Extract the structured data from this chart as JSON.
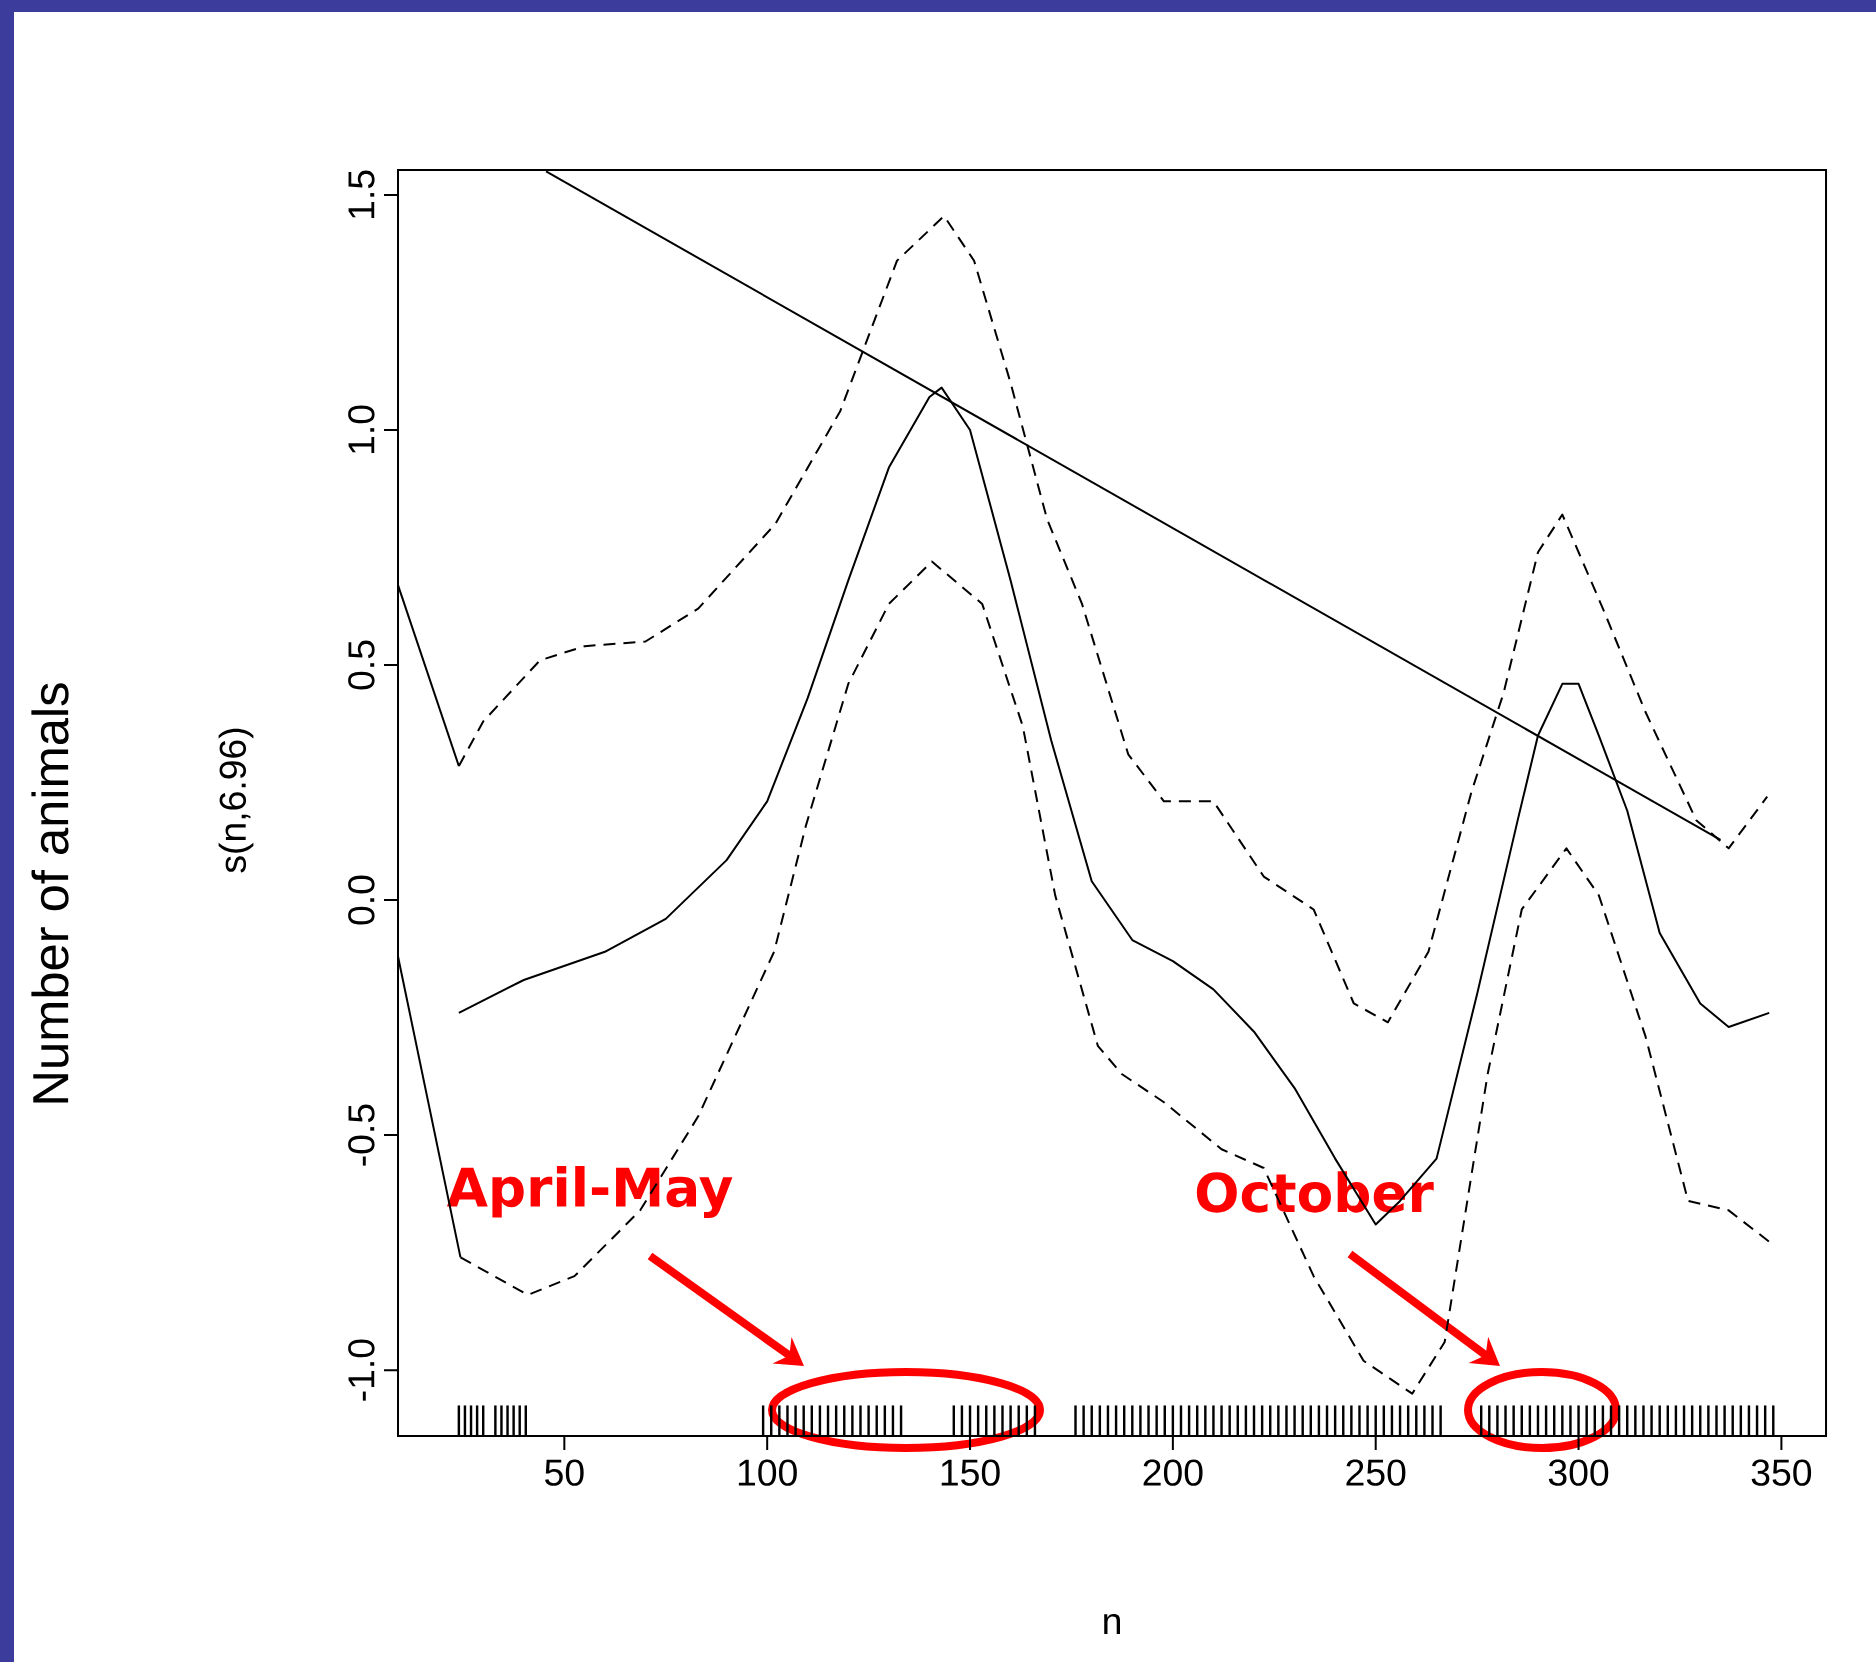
{
  "chart_data": {
    "type": "line",
    "xlabel": "n",
    "ylabel": "s(n,6.96)",
    "xlim": [
      9,
      361
    ],
    "ylim": [
      -1.14,
      1.553
    ],
    "xticks": [
      50,
      100,
      150,
      200,
      250,
      300,
      350
    ],
    "yticks": [
      {
        "value": -1,
        "label": "-1.0"
      },
      {
        "value": -0.5,
        "label": "-0.5"
      },
      {
        "value": 0,
        "label": "0.0"
      },
      {
        "value": 0.5,
        "label": "0.5"
      },
      {
        "value": 1,
        "label": "1.0"
      },
      {
        "value": 1.5,
        "label": "1.5"
      }
    ],
    "series": [
      {
        "color": "#000000",
        "line_style": "solid",
        "x": [
          24,
          40,
          60,
          75,
          90,
          100,
          110,
          120,
          130,
          140,
          143,
          150,
          160,
          170,
          180,
          190,
          200,
          210,
          220,
          230,
          240,
          250,
          256,
          265,
          275,
          285,
          290,
          296,
          300,
          305,
          312,
          320,
          330,
          337,
          347
        ],
        "values": [
          -0.24,
          -0.17,
          -0.11,
          -0.04,
          0.085,
          0.21,
          0.43,
          0.68,
          0.92,
          1.07,
          1.09,
          1.0,
          0.68,
          0.34,
          0.04,
          -0.085,
          -0.13,
          -0.19,
          -0.28,
          -0.4,
          -0.55,
          -0.69,
          -0.64,
          -0.55,
          -0.2,
          0.17,
          0.35,
          0.46,
          0.46,
          0.35,
          0.19,
          -0.07,
          -0.22,
          -0.27,
          -0.24
        ]
      },
      {
        "color": "#000000",
        "line_style": "dashed",
        "x": [
          24,
          30,
          44,
          55,
          70,
          83,
          102,
          118,
          132,
          143.6,
          151,
          160,
          169,
          177.6,
          189,
          197.8,
          210,
          222.4,
          234.7,
          244.6,
          253,
          263,
          273.6,
          281.5,
          290,
          296,
          306,
          316.5,
          329,
          337,
          346.5
        ],
        "values": [
          0.285,
          0.38,
          0.51,
          0.54,
          0.55,
          0.62,
          0.8,
          1.04,
          1.36,
          1.455,
          1.36,
          1.1,
          0.81,
          0.63,
          0.31,
          0.21,
          0.21,
          0.05,
          -0.02,
          -0.22,
          -0.26,
          -0.11,
          0.23,
          0.44,
          0.74,
          0.82,
          0.62,
          0.4,
          0.17,
          0.11,
          0.22
        ]
      },
      {
        "color": "#000000",
        "line_style": "dashed",
        "x": [
          24.4,
          41,
          52.5,
          68.7,
          83,
          101.7,
          109.6,
          120,
          130,
          140.6,
          153,
          163,
          171,
          181.5,
          187.4,
          197.8,
          212,
          222.4,
          234.7,
          247,
          259,
          267,
          277.6,
          286,
          297,
          305,
          316.5,
          327,
          337,
          347.5
        ],
        "values": [
          -0.76,
          -0.84,
          -0.8,
          -0.66,
          -0.46,
          -0.11,
          0.16,
          0.46,
          0.63,
          0.72,
          0.63,
          0.37,
          0.01,
          -0.31,
          -0.37,
          -0.43,
          -0.53,
          -0.57,
          -0.8,
          -0.98,
          -1.05,
          -0.94,
          -0.37,
          -0.02,
          0.11,
          0.01,
          -0.29,
          -0.64,
          -0.66,
          -0.73
        ]
      },
      {
        "color": "#000000",
        "line_style": "solid",
        "x": [
          45.5,
          335
        ],
        "values": [
          1.55,
          0.128
        ]
      },
      {
        "color": "#000000",
        "line_style": "solid",
        "x": [
          9,
          24
        ],
        "values": [
          0.67,
          0.285
        ]
      },
      {
        "color": "#000000",
        "line_style": "solid",
        "x": [
          9,
          24.4
        ],
        "values": [
          -0.12,
          -0.76
        ]
      },
      {
        "type": "bar",
        "color": "#000000",
        "x": [
          24,
          25.5,
          27,
          28.5,
          30,
          33,
          34.5,
          36,
          37.5,
          39,
          40.5,
          99,
          101,
          103,
          105,
          107,
          109,
          111,
          113,
          115,
          117,
          119,
          121,
          123,
          125,
          127,
          129,
          131,
          133,
          146,
          148,
          150,
          152,
          154,
          156,
          158,
          160,
          162,
          164,
          166,
          176,
          178,
          180,
          182,
          184,
          186,
          188,
          190,
          192,
          194,
          196,
          198,
          200,
          202,
          204,
          206,
          208,
          210,
          212,
          214,
          216,
          218,
          220,
          222,
          224,
          226,
          228,
          230,
          232,
          234,
          236,
          238,
          240,
          242,
          244,
          246,
          248,
          250,
          252,
          254,
          256,
          258,
          260,
          262,
          264,
          266,
          276,
          278,
          280,
          282,
          284,
          286,
          288,
          290,
          292,
          294,
          296,
          298,
          300,
          302,
          304,
          306,
          308,
          310,
          312,
          314,
          316,
          318,
          320,
          322,
          324,
          326,
          328,
          330,
          332,
          334,
          336,
          338,
          340,
          342,
          344,
          346,
          348
        ],
        "base": [
          -1.14,
          -1.14,
          -1.14,
          -1.14,
          -1.14,
          -1.14,
          -1.14,
          -1.14,
          -1.14,
          -1.14,
          -1.14,
          -1.14,
          -1.14,
          -1.14,
          -1.14,
          -1.14,
          -1.14,
          -1.14,
          -1.14,
          -1.14,
          -1.14,
          -1.14,
          -1.14,
          -1.14,
          -1.14,
          -1.14,
          -1.14,
          -1.14,
          -1.14,
          -1.14,
          -1.14,
          -1.14,
          -1.14,
          -1.14,
          -1.14,
          -1.14,
          -1.14,
          -1.14,
          -1.14,
          -1.14,
          -1.14,
          -1.14,
          -1.14,
          -1.14,
          -1.14,
          -1.14,
          -1.14,
          -1.14,
          -1.14,
          -1.14,
          -1.14,
          -1.14,
          -1.14,
          -1.14,
          -1.14,
          -1.14,
          -1.14,
          -1.14,
          -1.14,
          -1.14,
          -1.14,
          -1.14,
          -1.14,
          -1.14,
          -1.14,
          -1.14,
          -1.14,
          -1.14,
          -1.14,
          -1.14,
          -1.14,
          -1.14,
          -1.14,
          -1.14,
          -1.14,
          -1.14,
          -1.14,
          -1.14,
          -1.14,
          -1.14,
          -1.14,
          -1.14,
          -1.14,
          -1.14,
          -1.14,
          -1.14,
          -1.14,
          -1.14,
          -1.14,
          -1.14,
          -1.14,
          -1.14,
          -1.14,
          -1.14,
          -1.14,
          -1.14,
          -1.14,
          -1.14,
          -1.14,
          -1.14,
          -1.14,
          -1.14,
          -1.14,
          -1.14,
          -1.14,
          -1.14,
          -1.14,
          -1.14,
          -1.14,
          -1.14,
          -1.14,
          -1.14,
          -1.14,
          -1.14,
          -1.14,
          -1.14,
          -1.14,
          -1.14,
          -1.14,
          -1.14,
          -1.14,
          -1.14,
          -1.14
        ],
        "values": [
          0.065,
          0.065,
          0.065,
          0.065,
          0.065,
          0.065,
          0.065,
          0.065,
          0.065,
          0.065,
          0.065,
          0.065,
          0.065,
          0.065,
          0.065,
          0.065,
          0.065,
          0.065,
          0.065,
          0.065,
          0.065,
          0.065,
          0.065,
          0.065,
          0.065,
          0.065,
          0.065,
          0.065,
          0.065,
          0.065,
          0.065,
          0.065,
          0.065,
          0.065,
          0.065,
          0.065,
          0.065,
          0.065,
          0.065,
          0.065,
          0.065,
          0.065,
          0.065,
          0.065,
          0.065,
          0.065,
          0.065,
          0.065,
          0.065,
          0.065,
          0.065,
          0.065,
          0.065,
          0.065,
          0.065,
          0.065,
          0.065,
          0.065,
          0.065,
          0.065,
          0.065,
          0.065,
          0.065,
          0.065,
          0.065,
          0.065,
          0.065,
          0.065,
          0.065,
          0.065,
          0.065,
          0.065,
          0.065,
          0.065,
          0.065,
          0.065,
          0.065,
          0.065,
          0.065,
          0.065,
          0.065,
          0.065,
          0.065,
          0.065,
          0.065,
          0.065,
          0.065,
          0.065,
          0.065,
          0.065,
          0.065,
          0.065,
          0.065,
          0.065,
          0.065,
          0.065,
          0.065,
          0.065,
          0.065,
          0.065,
          0.065,
          0.065,
          0.065,
          0.065,
          0.065,
          0.065,
          0.065,
          0.065,
          0.065,
          0.065,
          0.065,
          0.065,
          0.065,
          0.065,
          0.065,
          0.065,
          0.065,
          0.065,
          0.065,
          0.065,
          0.065,
          0.065,
          0.065
        ]
      }
    ],
    "annotations": [
      "April-May",
      "October",
      "Number of animals"
    ]
  }
}
